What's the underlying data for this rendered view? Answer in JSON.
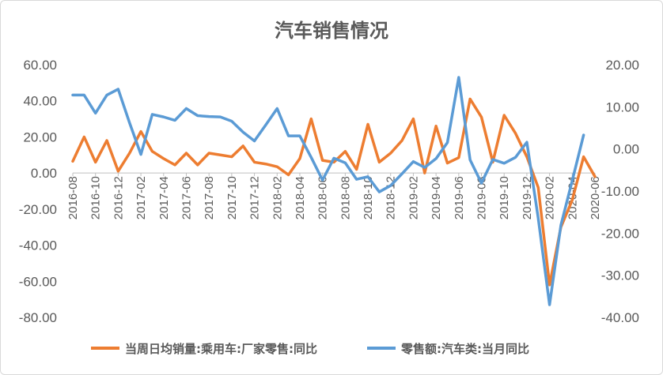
{
  "chart_data": {
    "type": "line",
    "title": "汽车销售情况",
    "x": [
      "2016-08",
      "2016-09",
      "2016-10",
      "2016-11",
      "2016-12",
      "2017-01",
      "2017-02",
      "2017-03",
      "2017-04",
      "2017-05",
      "2017-06",
      "2017-07",
      "2017-08",
      "2017-09",
      "2017-10",
      "2017-11",
      "2017-12",
      "2018-01",
      "2018-02",
      "2018-03",
      "2018-04",
      "2018-05",
      "2018-06",
      "2018-07",
      "2018-08",
      "2018-09",
      "2018-10",
      "2018-11",
      "2018-12",
      "2019-01",
      "2019-02",
      "2019-03",
      "2019-04",
      "2019-05",
      "2019-06",
      "2019-07",
      "2019-08",
      "2019-09",
      "2019-10",
      "2019-11",
      "2019-12",
      "2020-01",
      "2020-02",
      "2020-03",
      "2020-04",
      "2020-05",
      "2020-06"
    ],
    "x_tick_labels": [
      "2016-08",
      "2016-10",
      "2016-12",
      "2017-02",
      "2017-04",
      "2017-06",
      "2017-08",
      "2017-10",
      "2017-12",
      "2018-02",
      "2018-04",
      "2018-06",
      "2018-08",
      "2018-10",
      "2018-12",
      "2019-02",
      "2019-04",
      "2019-06",
      "2019-08",
      "2019-10",
      "2019-12",
      "2020-02",
      "2020-04",
      "2020-06"
    ],
    "y_left": {
      "min": -80,
      "max": 60,
      "step": 20,
      "tick_labels": [
        "60.00",
        "40.00",
        "20.00",
        "0.00",
        "-20.00",
        "-40.00",
        "-60.00",
        "-80.00"
      ]
    },
    "y_right": {
      "min": -40,
      "max": 20,
      "step": 10,
      "tick_labels": [
        "20.00",
        "10.00",
        "0.00",
        "-10.00",
        "-20.00",
        "-30.00",
        "-40.00"
      ]
    },
    "series": [
      {
        "name": "当周日均销量:乘用车:厂家零售:同比",
        "axis": "left",
        "color": "#ed7d31",
        "values": [
          6.5,
          20,
          6,
          18,
          1,
          11,
          23,
          12,
          8,
          4.5,
          11,
          4.5,
          11,
          10,
          9,
          15,
          6,
          5,
          3.5,
          -1,
          8,
          30,
          7,
          6,
          12,
          2,
          27,
          6,
          11,
          18,
          30,
          0,
          26,
          5.5,
          8.5,
          41,
          31,
          6,
          32,
          22,
          9,
          -8,
          -62,
          -30,
          -15,
          9,
          -2
        ]
      },
      {
        "name": "零售额:汽车类:当月同比",
        "axis": "right",
        "color": "#5b9bd5",
        "values": [
          12.8,
          12.8,
          8.5,
          12.8,
          14.2,
          6.2,
          -1.3,
          8.2,
          7.6,
          6.8,
          9.6,
          7.9,
          7.7,
          7.6,
          6.6,
          4,
          1.9,
          5.7,
          9.6,
          3.1,
          3.1,
          -2,
          -7.4,
          -2.2,
          -3.3,
          -7.2,
          -6.6,
          -10.2,
          -8.7,
          -5.9,
          -3,
          -4.4,
          -2.3,
          1.5,
          17,
          -2.6,
          -8.1,
          -2.5,
          -3.4,
          -2,
          1.6,
          -16.4,
          -37,
          -18.1,
          -7.5,
          3.3,
          null
        ]
      }
    ],
    "legend": "bottom",
    "grid": false
  }
}
